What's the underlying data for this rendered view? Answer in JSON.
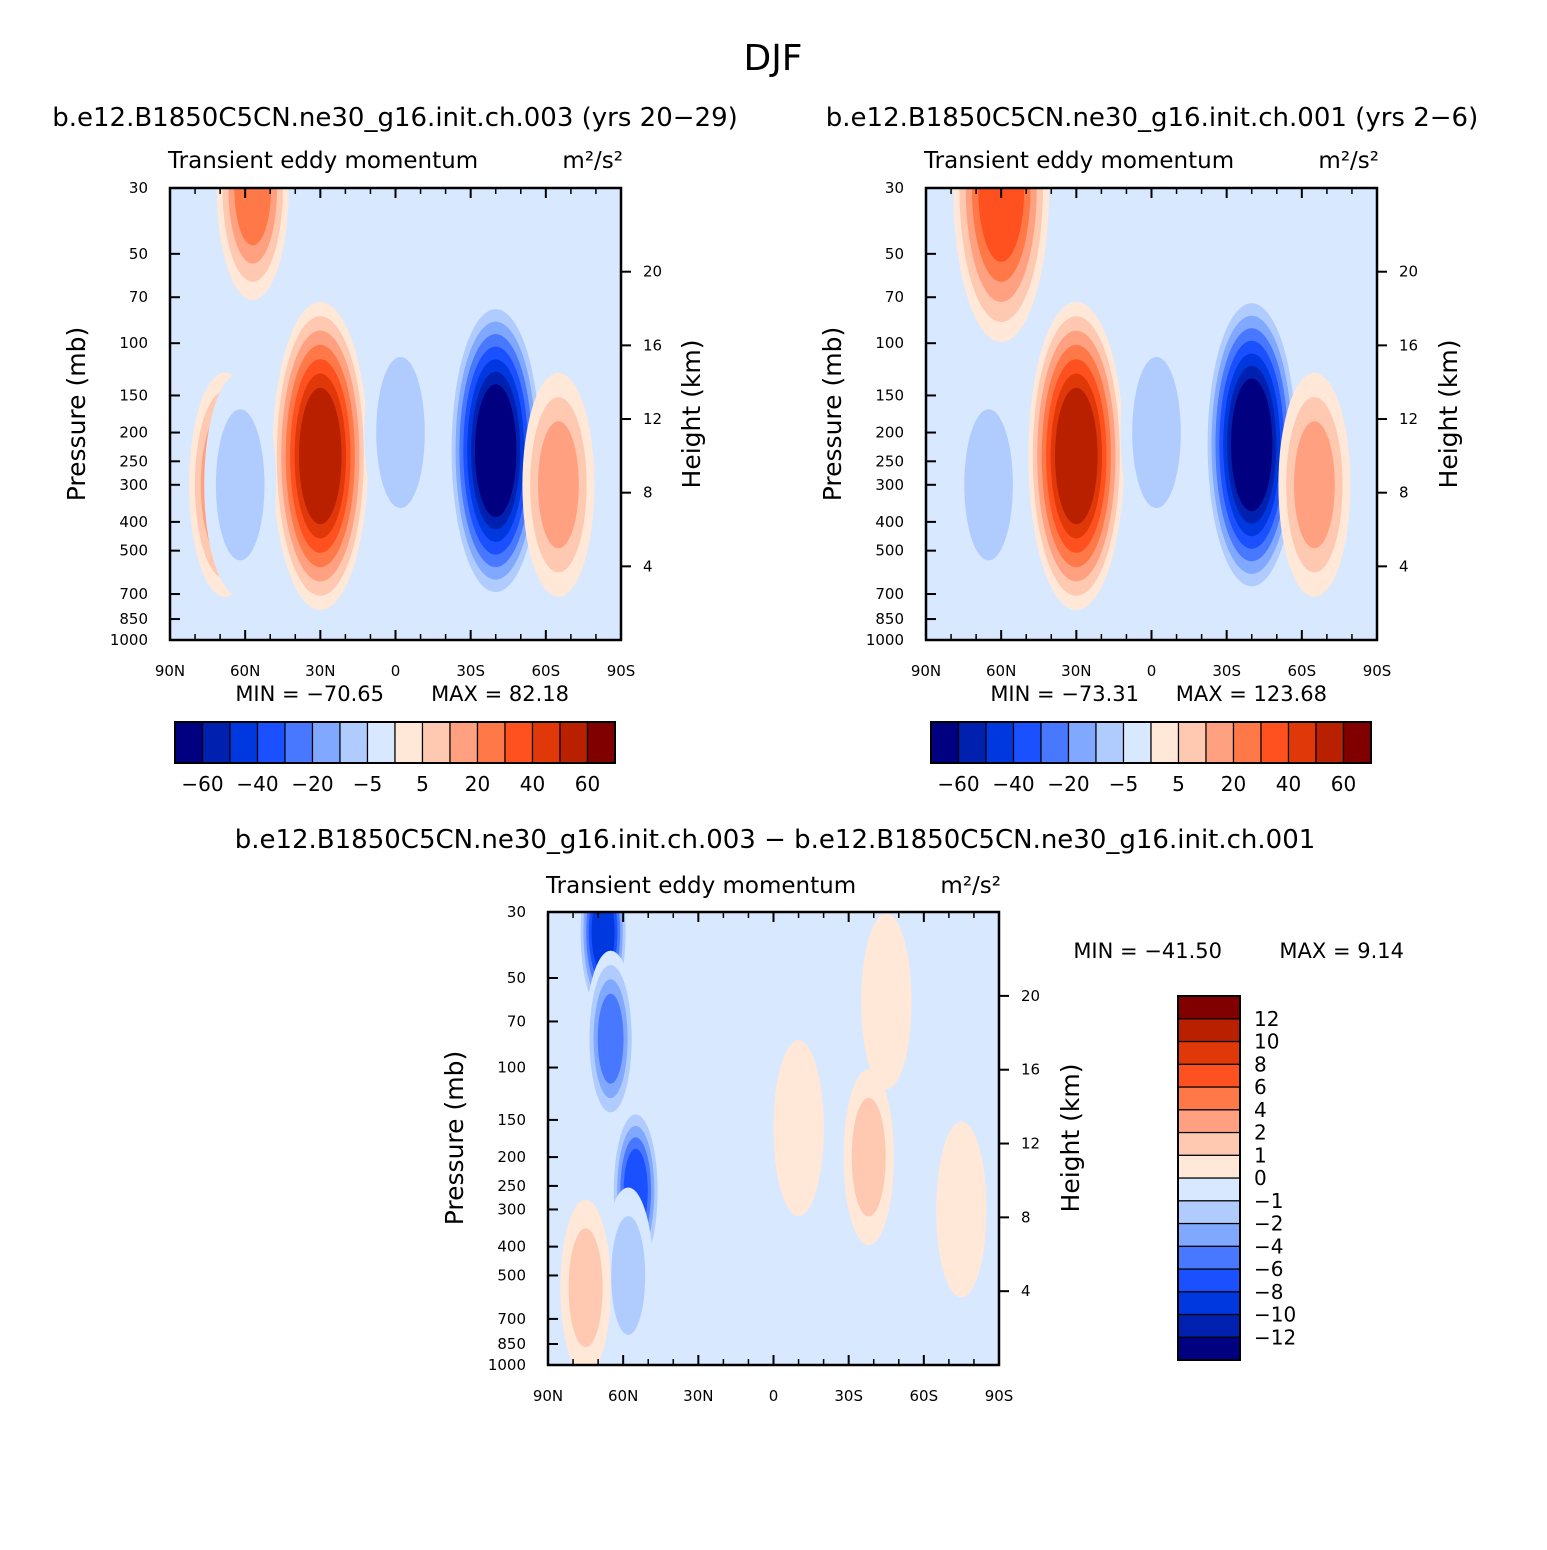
{
  "figure_title": "DJF",
  "chart_data": [
    {
      "type": "heatmap",
      "title": "b.e12.B1850C5CN.ne30_g16.init.ch.003 (yrs 20-29)",
      "subtitle_left": "Transient eddy momentum",
      "subtitle_right": "m²/s²",
      "xlabel": "",
      "ylabel": "Pressure (mb)",
      "ylabel_right": "Height (km)",
      "x_ticks": [
        "90N",
        "60N",
        "30N",
        "0",
        "30S",
        "60S",
        "90S"
      ],
      "x_tick_values": [
        90,
        60,
        30,
        0,
        -30,
        -60,
        -90
      ],
      "y_ticks": [
        30,
        50,
        70,
        100,
        150,
        200,
        250,
        300,
        400,
        500,
        700,
        850,
        1000
      ],
      "y_scale": "log",
      "ylim": [
        1000,
        30
      ],
      "height_ticks": [
        4,
        8,
        12,
        16,
        20
      ],
      "min_label": "MIN = -70.65",
      "max_label": "MAX = 82.18",
      "min": -70.65,
      "max": 82.18,
      "colorbar": {
        "orientation": "horizontal",
        "colors": [
          "#000080",
          "#0020b0",
          "#0038e0",
          "#1a50ff",
          "#4878ff",
          "#80a8ff",
          "#b0ccff",
          "#d8e8ff",
          "#ffe8d8",
          "#ffc8b0",
          "#ffa080",
          "#ff7848",
          "#ff5020",
          "#e03808",
          "#b82000",
          "#800000"
        ],
        "labels": [
          "-60",
          "-40",
          "-20",
          "-5",
          "5",
          "20",
          "40",
          "60"
        ]
      },
      "features": [
        {
          "lat": 57,
          "p": 30,
          "value": 25
        },
        {
          "lat": 30,
          "p": 240,
          "value": 55
        },
        {
          "lat": 68,
          "p": 300,
          "value": 28
        },
        {
          "lat": 62,
          "p": 300,
          "value": -12
        },
        {
          "lat": -40,
          "p": 230,
          "value": -70
        },
        {
          "lat": -2,
          "p": 200,
          "value": -10
        },
        {
          "lat": -65,
          "p": 300,
          "value": 22
        },
        {
          "lat": 15,
          "p": 500,
          "value": 3
        }
      ]
    },
    {
      "type": "heatmap",
      "title": "b.e12.B1850C5CN.ne30_g16.init.ch.001 (yrs 2-6)",
      "subtitle_left": "Transient eddy momentum",
      "subtitle_right": "m²/s²",
      "xlabel": "",
      "ylabel": "Pressure (mb)",
      "ylabel_right": "Height (km)",
      "x_ticks": [
        "90N",
        "60N",
        "30N",
        "0",
        "30S",
        "60S",
        "90S"
      ],
      "x_tick_values": [
        90,
        60,
        30,
        0,
        -30,
        -60,
        -90
      ],
      "y_ticks": [
        30,
        50,
        70,
        100,
        150,
        200,
        250,
        300,
        400,
        500,
        700,
        850,
        1000
      ],
      "y_scale": "log",
      "ylim": [
        1000,
        30
      ],
      "height_ticks": [
        4,
        8,
        12,
        16,
        20
      ],
      "min_label": "MIN = -73.31",
      "max_label": "MAX = 123.68",
      "min": -73.31,
      "max": 123.68,
      "colorbar": {
        "orientation": "horizontal",
        "colors": [
          "#000080",
          "#0020b0",
          "#0038e0",
          "#1a50ff",
          "#4878ff",
          "#80a8ff",
          "#b0ccff",
          "#d8e8ff",
          "#ffe8d8",
          "#ffc8b0",
          "#ffa080",
          "#ff7848",
          "#ff5020",
          "#e03808",
          "#b82000",
          "#800000"
        ],
        "labels": [
          "-60",
          "-40",
          "-20",
          "-5",
          "5",
          "20",
          "40",
          "60"
        ]
      },
      "features": [
        {
          "lat": 60,
          "p": 30,
          "value": 35
        },
        {
          "lat": 30,
          "p": 240,
          "value": 55
        },
        {
          "lat": 65,
          "p": 300,
          "value": -12
        },
        {
          "lat": -40,
          "p": 220,
          "value": -73
        },
        {
          "lat": -2,
          "p": 200,
          "value": -10
        },
        {
          "lat": -65,
          "p": 300,
          "value": 22
        },
        {
          "lat": 15,
          "p": 500,
          "value": 3
        }
      ]
    },
    {
      "type": "heatmap",
      "title": "b.e12.B1850C5CN.ne30_g16.init.ch.003 - b.e12.B1850C5CN.ne30_g16.init.ch.001",
      "subtitle_left": "Transient eddy momentum",
      "subtitle_right": "m²/s²",
      "xlabel": "",
      "ylabel": "Pressure (mb)",
      "ylabel_right": "Height (km)",
      "x_ticks": [
        "90N",
        "60N",
        "30N",
        "0",
        "30S",
        "60S",
        "90S"
      ],
      "x_tick_values": [
        90,
        60,
        30,
        0,
        -30,
        -60,
        -90
      ],
      "y_ticks": [
        30,
        50,
        70,
        100,
        150,
        200,
        250,
        300,
        400,
        500,
        700,
        850,
        1000
      ],
      "y_scale": "log",
      "ylim": [
        1000,
        30
      ],
      "height_ticks": [
        4,
        8,
        12,
        16,
        20
      ],
      "min_label": "MIN = -41.50",
      "max_label": "MAX = 9.14",
      "min": -41.5,
      "max": 9.14,
      "colorbar": {
        "orientation": "vertical",
        "colors": [
          "#000080",
          "#0020b0",
          "#0038e0",
          "#1a50ff",
          "#4878ff",
          "#80a8ff",
          "#b0ccff",
          "#d8e8ff",
          "#ffe8d8",
          "#ffc8b0",
          "#ffa080",
          "#ff7848",
          "#ff5020",
          "#e03808",
          "#b82000",
          "#800000"
        ],
        "labels": [
          "-12",
          "-10",
          "-8",
          "-6",
          "-4",
          "-2",
          "-1",
          "0",
          "1",
          "2",
          "4",
          "6",
          "8",
          "10",
          "12"
        ]
      },
      "features": [
        {
          "lat": 68,
          "p": 35,
          "value": -9
        },
        {
          "lat": 65,
          "p": 80,
          "value": -5
        },
        {
          "lat": 55,
          "p": 260,
          "value": -7
        },
        {
          "lat": 58,
          "p": 500,
          "value": -3
        },
        {
          "lat": 75,
          "p": 550,
          "value": 2
        },
        {
          "lat": -38,
          "p": 200,
          "value": 3
        },
        {
          "lat": -10,
          "p": 160,
          "value": 1.5
        },
        {
          "lat": -75,
          "p": 300,
          "value": 1.5
        },
        {
          "lat": 30,
          "p": 300,
          "value": 0.6
        },
        {
          "lat": -45,
          "p": 60,
          "value": 0.8
        }
      ]
    }
  ]
}
